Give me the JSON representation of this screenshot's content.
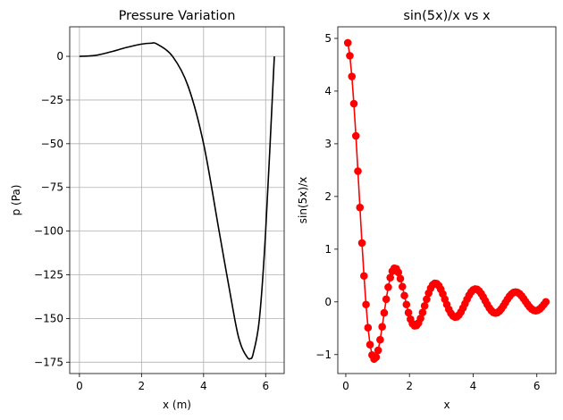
{
  "chart_data": [
    {
      "type": "line",
      "title": "Pressure Variation",
      "xlabel": "x (m)",
      "ylabel": "p (Pa)",
      "xlim": [
        -0.314,
        6.597
      ],
      "ylim": [
        -181.5,
        16.9
      ],
      "xticks": [
        0,
        2,
        4,
        6
      ],
      "xticklabels": [
        "0",
        "2",
        "4",
        "6"
      ],
      "yticks": [
        0,
        -25,
        -50,
        -75,
        -100,
        -125,
        -150,
        -175
      ],
      "yticklabels": [
        "0",
        "−25",
        "−50",
        "−75",
        "−100",
        "−125",
        "−150",
        "−175"
      ],
      "grid": true,
      "color": "#000000",
      "series": [
        {
          "x": [
            0.0,
            0.5,
            1.0,
            1.5,
            2.0,
            2.3,
            2.5,
            3.0,
            3.5,
            4.0,
            4.5,
            5.0,
            5.2,
            5.4,
            5.5,
            5.6,
            5.8,
            6.0,
            6.28
          ],
          "y": [
            0.0,
            0.5,
            2.5,
            5.0,
            7.0,
            7.5,
            7.0,
            0.0,
            -17.0,
            -50.0,
            -100.0,
            -150.0,
            -165.0,
            -172.0,
            -173.0,
            -170.0,
            -150.0,
            -100.0,
            0.0
          ]
        }
      ]
    },
    {
      "type": "line",
      "title": "sin(5x)/x vs x",
      "xlabel": "x",
      "ylabel": "sin(5x)/x",
      "xlim": [
        -0.251,
        6.597
      ],
      "ylim": [
        -1.36,
        5.22
      ],
      "xticks": [
        0,
        2,
        4,
        6
      ],
      "xticklabels": [
        "0",
        "2",
        "4",
        "6"
      ],
      "yticks": [
        -1,
        0,
        1,
        2,
        3,
        4,
        5
      ],
      "yticklabels": [
        "−1",
        "0",
        "1",
        "2",
        "3",
        "4",
        "5"
      ],
      "grid": false,
      "markers": true,
      "color": "#ff0000",
      "series": [
        {
          "function": "sin(5x)/x",
          "x_start": 0.0635,
          "x_end": 6.2832,
          "points": 99
        }
      ]
    }
  ]
}
